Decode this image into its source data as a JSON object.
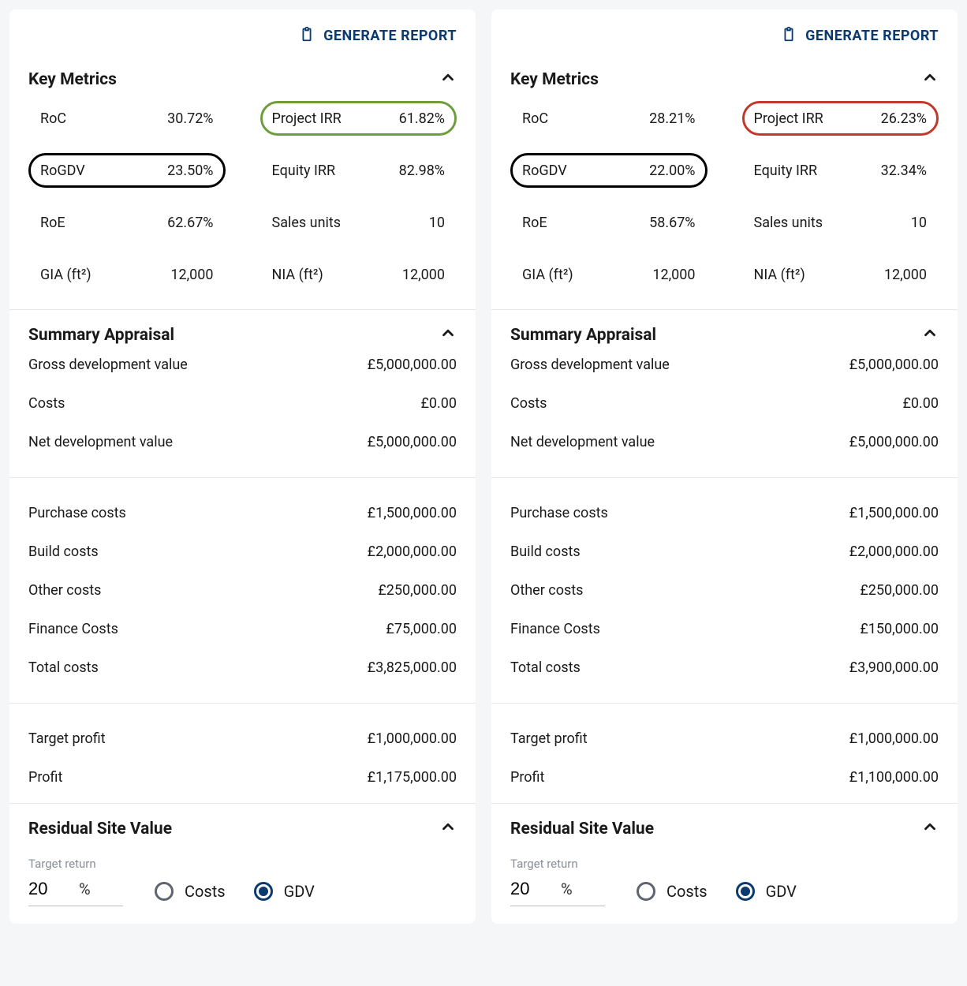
{
  "generate_label": "GENERATE REPORT",
  "sections": {
    "key_metrics_title": "Key Metrics",
    "summary_appraisal_title": "Summary Appraisal",
    "residual_title": "Residual Site Value",
    "target_return_label": "Target return"
  },
  "metric_labels": {
    "roc": "RoC",
    "rogdv": "RoGDV",
    "roe": "RoE",
    "gia": "GIA (ft²)",
    "project_irr": "Project IRR",
    "equity_irr": "Equity IRR",
    "sales_units": "Sales units",
    "nia": "NIA (ft²)"
  },
  "appraisal_labels": {
    "gdv": "Gross development value",
    "costs_top": "Costs",
    "ndv": "Net development value",
    "purchase": "Purchase costs",
    "build": "Build costs",
    "other": "Other costs",
    "finance": "Finance Costs",
    "total": "Total costs",
    "target_profit": "Target profit",
    "profit": "Profit"
  },
  "residual": {
    "target_value": "20",
    "pct": "%",
    "radio_costs": "Costs",
    "radio_gdv": "GDV"
  },
  "highlight_colors": {
    "black": "#000000",
    "green": "#6f9d3b",
    "red": "#c0392b"
  },
  "panels": [
    {
      "metrics": {
        "roc": "30.72%",
        "rogdv": "23.50%",
        "roe": "62.67%",
        "gia": "12,000",
        "project_irr": "61.82%",
        "equity_irr": "82.98%",
        "sales_units": "10",
        "nia": "12,000"
      },
      "highlights": {
        "rogdv": "black",
        "project_irr": "green"
      },
      "appraisal": {
        "gdv": "£5,000,000.00",
        "costs_top": "£0.00",
        "ndv": "£5,000,000.00",
        "purchase": "£1,500,000.00",
        "build": "£2,000,000.00",
        "other": "£250,000.00",
        "finance": "£75,000.00",
        "total": "£3,825,000.00",
        "target_profit": "£1,000,000.00",
        "profit": "£1,175,000.00"
      },
      "residual_selected": "gdv"
    },
    {
      "metrics": {
        "roc": "28.21%",
        "rogdv": "22.00%",
        "roe": "58.67%",
        "gia": "12,000",
        "project_irr": "26.23%",
        "equity_irr": "32.34%",
        "sales_units": "10",
        "nia": "12,000"
      },
      "highlights": {
        "rogdv": "black",
        "project_irr": "red"
      },
      "appraisal": {
        "gdv": "£5,000,000.00",
        "costs_top": "£0.00",
        "ndv": "£5,000,000.00",
        "purchase": "£1,500,000.00",
        "build": "£2,000,000.00",
        "other": "£250,000.00",
        "finance": "£150,000.00",
        "total": "£3,900,000.00",
        "target_profit": "£1,000,000.00",
        "profit": "£1,100,000.00"
      },
      "residual_selected": "gdv"
    }
  ]
}
